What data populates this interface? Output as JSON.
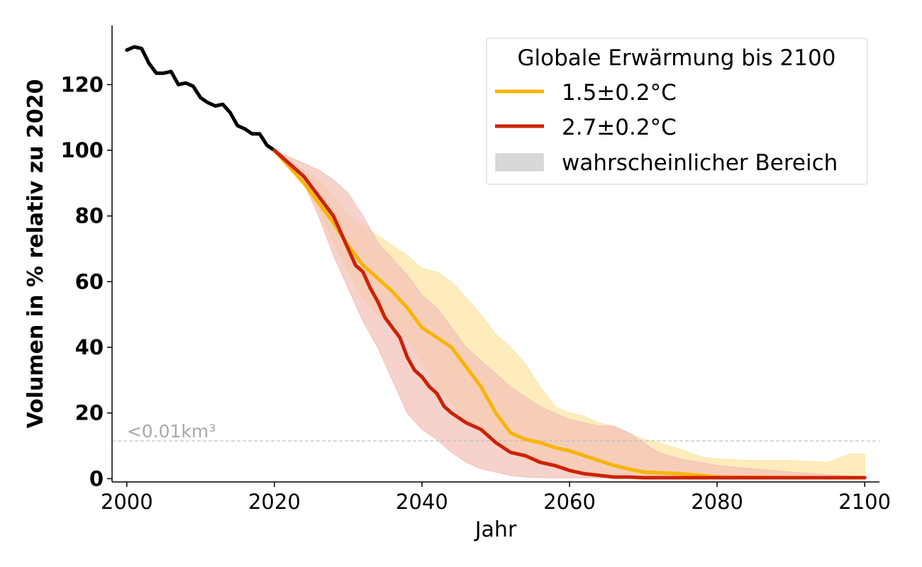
{
  "chart_data": {
    "type": "line",
    "xlabel": "Jahr",
    "ylabel": "Volumen in % relativ zu 2020",
    "xlim": [
      1998,
      2102
    ],
    "ylim": [
      -1,
      138
    ],
    "xticks": [
      2000,
      2020,
      2040,
      2060,
      2080,
      2100
    ],
    "yticks": [
      0,
      20,
      40,
      60,
      80,
      100,
      120
    ],
    "grid": false,
    "legend": {
      "position": "top-right",
      "title": "Globale Erwärmung bis 2100",
      "entries": [
        "1.5±0.2°C",
        "2.7±0.2°C",
        "wahrscheinlicher Bereich"
      ]
    },
    "threshold": {
      "y": 11.5,
      "label": "<0.01km³"
    },
    "colors": {
      "historical": "#000000",
      "low": "#f7b500",
      "high": "#cc2200",
      "low_band": "#fde5a6",
      "high_band": "#f2c0b8",
      "overlap_band": "#f2c2a0",
      "legend_patch": "#d8d8d8",
      "threshold": "#bbbbbb"
    },
    "series": [
      {
        "x": [
          2000,
          2001,
          2002,
          2003,
          2004,
          2005,
          2006,
          2007,
          2008,
          2009,
          2010,
          2011,
          2012,
          2013,
          2014,
          2015,
          2016,
          2017,
          2018,
          2019,
          2020
        ],
        "values": [
          130.5,
          131.5,
          131,
          126.5,
          123.5,
          123.5,
          124,
          120,
          120.5,
          119.5,
          116,
          114.5,
          113.5,
          114,
          111.5,
          107.5,
          106.5,
          105,
          105,
          101.5,
          100
        ]
      },
      {
        "name": "1.5±0.2°C",
        "x": [
          2020,
          2022,
          2024,
          2026,
          2028,
          2030,
          2032,
          2034,
          2036,
          2038,
          2040,
          2042,
          2044,
          2046,
          2048,
          2050,
          2052,
          2054,
          2056,
          2058,
          2060,
          2062,
          2064,
          2066,
          2068,
          2070,
          2075,
          2080,
          2090,
          2100
        ],
        "values": [
          100,
          95,
          90,
          84,
          78,
          71,
          65,
          61,
          57,
          52,
          46,
          43,
          40,
          34,
          28,
          20,
          14,
          12,
          11,
          9.5,
          8.5,
          7,
          5.5,
          4,
          3,
          2,
          1.5,
          0.5,
          0.3,
          0.3
        ]
      },
      {
        "name": "2.7±0.2°C",
        "x": [
          2020,
          2022,
          2024,
          2026,
          2028,
          2029,
          2030,
          2031,
          2032,
          2033,
          2034,
          2035,
          2036,
          2037,
          2038,
          2039,
          2040,
          2041,
          2042,
          2043,
          2044,
          2046,
          2048,
          2050,
          2052,
          2054,
          2056,
          2058,
          2060,
          2062,
          2064,
          2066,
          2068,
          2070,
          2080,
          2090,
          2100
        ],
        "values": [
          100,
          96,
          92,
          86,
          80,
          75,
          70,
          65,
          63,
          58,
          54,
          49,
          46,
          43,
          37,
          33,
          31,
          28,
          26,
          22,
          20,
          17,
          15,
          11,
          8,
          7,
          5,
          4,
          2.5,
          1.5,
          1,
          0.5,
          0.5,
          0.3,
          0.3,
          0.3,
          0.3
        ]
      }
    ],
    "bands": [
      {
        "name": "wahrscheinlicher Bereich (1.5±0.2°C)",
        "x": [
          2020,
          2024,
          2026,
          2028,
          2030,
          2032,
          2034,
          2036,
          2038,
          2040,
          2042,
          2044,
          2046,
          2048,
          2050,
          2052,
          2054,
          2056,
          2058,
          2060,
          2062,
          2064,
          2066,
          2068,
          2070,
          2072,
          2075,
          2078,
          2080,
          2085,
          2090,
          2095,
          2098,
          2100
        ],
        "lower": [
          100,
          90,
          82,
          72,
          63,
          55,
          50,
          47,
          43,
          35,
          28,
          23,
          18,
          14,
          11,
          8,
          6,
          4.5,
          3.5,
          2,
          1.5,
          1,
          0.8,
          0.6,
          0.5,
          0.4,
          0.3,
          0.3,
          0.3,
          0.3,
          0.3,
          0.3,
          0.3,
          0.3
        ],
        "upper": [
          100,
          94,
          91,
          86,
          80,
          77,
          74,
          71,
          68,
          64,
          63,
          60,
          55,
          50,
          44,
          40,
          35,
          28,
          22,
          20,
          19,
          17,
          16,
          14,
          12,
          11,
          9,
          6.5,
          6,
          5.5,
          5.5,
          5,
          7.5,
          7.5
        ]
      },
      {
        "name": "wahrscheinlicher Bereich (2.7±0.2°C)",
        "x": [
          2020,
          2024,
          2026,
          2028,
          2030,
          2032,
          2034,
          2036,
          2038,
          2040,
          2042,
          2044,
          2046,
          2048,
          2050,
          2052,
          2054,
          2056,
          2058,
          2060,
          2062,
          2064,
          2066,
          2068,
          2070,
          2072,
          2075,
          2080,
          2085,
          2090,
          2100
        ],
        "lower": [
          100,
          90,
          80,
          68,
          58,
          48,
          40,
          30,
          20,
          15,
          12,
          8,
          5,
          3,
          2,
          1,
          0.5,
          0.3,
          0.2,
          0.2,
          0.2,
          0.2,
          0.2,
          0.2,
          0.2,
          0.2,
          0.2,
          0.2,
          0.2,
          0.2,
          0.2
        ],
        "upper": [
          100,
          96,
          94,
          91,
          87,
          80,
          72,
          67,
          62,
          56,
          52,
          46,
          40,
          36,
          32,
          28,
          25,
          22,
          20,
          18,
          17,
          16,
          16,
          14,
          11,
          8,
          6,
          4,
          3,
          2,
          0.5
        ]
      }
    ]
  }
}
